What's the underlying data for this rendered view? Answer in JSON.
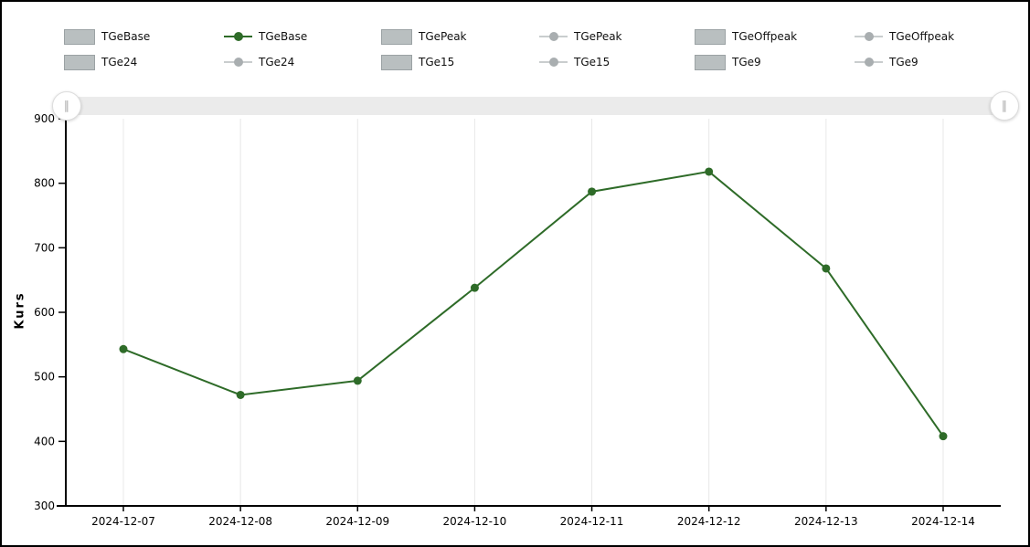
{
  "colors": {
    "active_line": "#2E6B28",
    "inactive_line": "#C9CDCE",
    "inactive_dot": "#A9AEB0",
    "swatch_fill": "#B9BFC0",
    "swatch_border": "#9BA2A4",
    "grid": "#E8E8E8",
    "axis": "#000000",
    "scrollbar_track": "#EBEBEB"
  },
  "legend": {
    "items": [
      {
        "label": "TGeBase",
        "marker": "box",
        "state": "inactive"
      },
      {
        "label": "TGeBase",
        "marker": "line",
        "state": "active"
      },
      {
        "label": "TGePeak",
        "marker": "box",
        "state": "inactive"
      },
      {
        "label": "TGePeak",
        "marker": "line",
        "state": "inactive"
      },
      {
        "label": "TGeOffpeak",
        "marker": "box",
        "state": "inactive"
      },
      {
        "label": "TGeOffpeak",
        "marker": "line",
        "state": "inactive"
      },
      {
        "label": "TGe24",
        "marker": "box",
        "state": "inactive"
      },
      {
        "label": "TGe24",
        "marker": "line",
        "state": "inactive"
      },
      {
        "label": "TGe15",
        "marker": "box",
        "state": "inactive"
      },
      {
        "label": "TGe15",
        "marker": "line",
        "state": "inactive"
      },
      {
        "label": "TGe9",
        "marker": "box",
        "state": "inactive"
      },
      {
        "label": "TGe9",
        "marker": "line",
        "state": "inactive"
      }
    ]
  },
  "scrollbar": {
    "handle_glyph": "∥"
  },
  "chart_data": {
    "type": "line",
    "categories": [
      "2024-12-07",
      "2024-12-08",
      "2024-12-09",
      "2024-12-10",
      "2024-12-11",
      "2024-12-12",
      "2024-12-13",
      "2024-12-14"
    ],
    "series": [
      {
        "name": "TGeBase",
        "color": "#2E6B28",
        "values": [
          543,
          472,
          494,
          638,
          787,
          818,
          668,
          408
        ]
      }
    ],
    "title": "",
    "xlabel": "",
    "ylabel": "Kurs",
    "ylim": [
      300,
      900
    ],
    "ytick_step": 100,
    "grid": "vertical-only",
    "legend_position": "top"
  }
}
